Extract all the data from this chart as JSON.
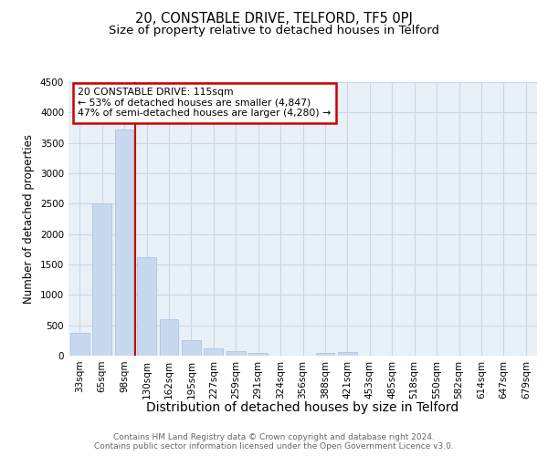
{
  "title": "20, CONSTABLE DRIVE, TELFORD, TF5 0PJ",
  "subtitle": "Size of property relative to detached houses in Telford",
  "xlabel": "Distribution of detached houses by size in Telford",
  "ylabel": "Number of detached properties",
  "bar_color": "#c8d8ee",
  "bar_edge_color": "#aec4de",
  "grid_color": "#c8d8e8",
  "bg_color": "#e8f0f8",
  "vline_x_index": 2.5,
  "vline_color": "#cc0000",
  "annotation_text": "20 CONSTABLE DRIVE: 115sqm\n← 53% of detached houses are smaller (4,847)\n47% of semi-detached houses are larger (4,280) →",
  "annotation_box_color": "#ffffff",
  "annotation_box_edge": "#cc0000",
  "categories": [
    "33sqm",
    "65sqm",
    "98sqm",
    "130sqm",
    "162sqm",
    "195sqm",
    "227sqm",
    "259sqm",
    "291sqm",
    "324sqm",
    "356sqm",
    "388sqm",
    "421sqm",
    "453sqm",
    "485sqm",
    "518sqm",
    "550sqm",
    "582sqm",
    "614sqm",
    "647sqm",
    "679sqm"
  ],
  "values": [
    380,
    2500,
    3720,
    1620,
    600,
    250,
    120,
    70,
    50,
    0,
    0,
    50,
    55,
    0,
    0,
    0,
    0,
    0,
    0,
    0,
    0
  ],
  "ylim": [
    0,
    4500
  ],
  "yticks": [
    0,
    500,
    1000,
    1500,
    2000,
    2500,
    3000,
    3500,
    4000,
    4500
  ],
  "footer_text": "Contains HM Land Registry data © Crown copyright and database right 2024.\nContains public sector information licensed under the Open Government Licence v3.0.",
  "title_fontsize": 10.5,
  "subtitle_fontsize": 9.5,
  "xlabel_fontsize": 10,
  "ylabel_fontsize": 8.5,
  "tick_fontsize": 7.5,
  "footer_fontsize": 6.5,
  "ann_fontsize": 7.8
}
